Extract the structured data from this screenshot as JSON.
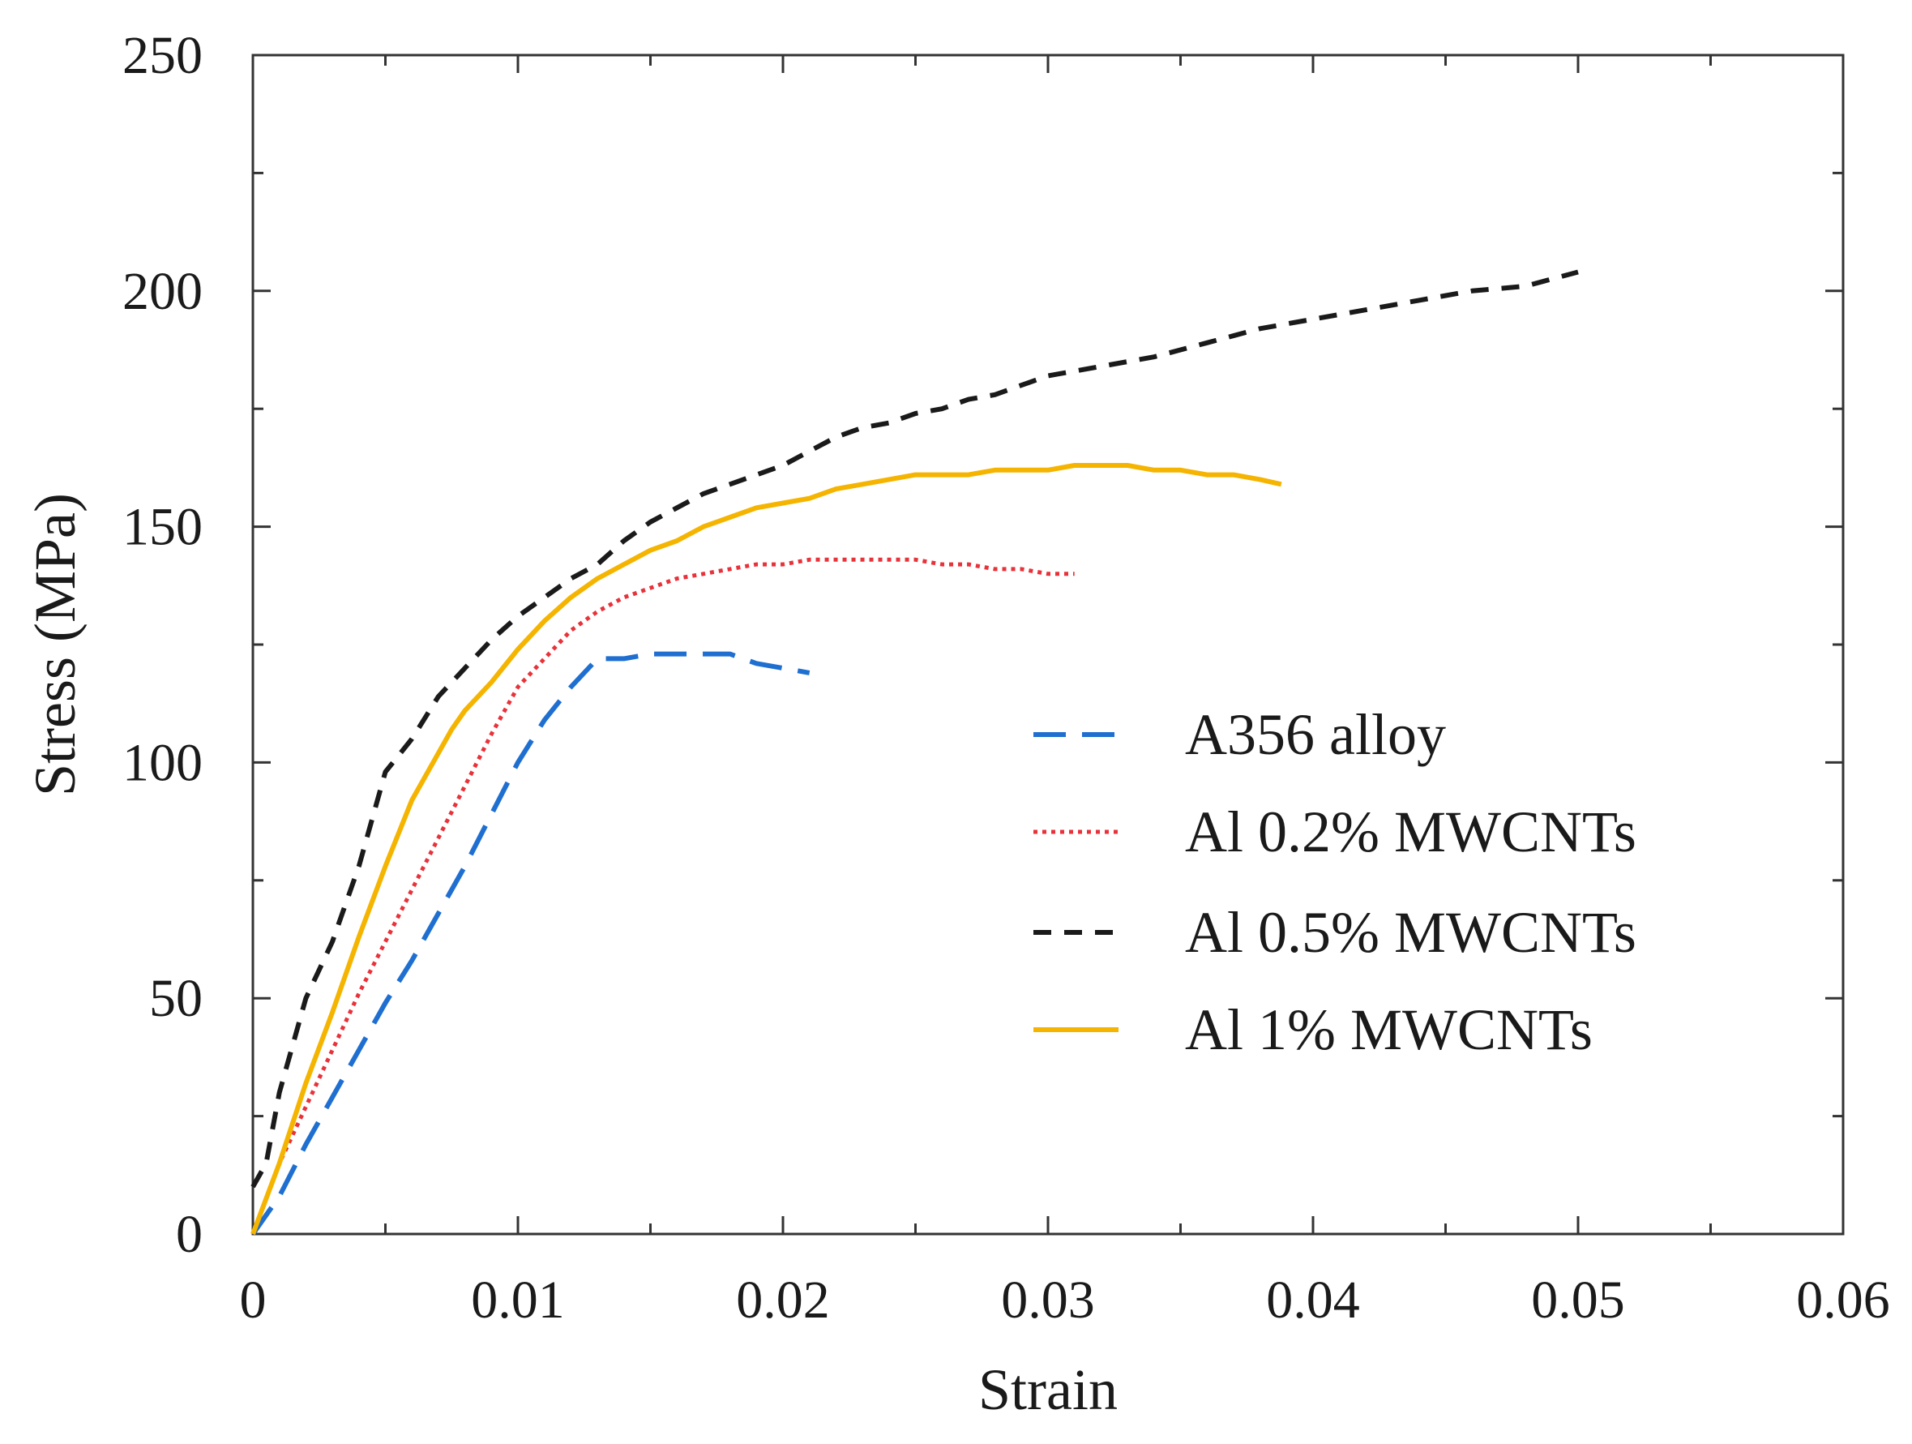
{
  "chart_data": {
    "type": "line",
    "title": "",
    "xlabel": "Strain",
    "ylabel": "Stress (MPa)",
    "xlim": [
      0,
      0.06
    ],
    "ylim": [
      0,
      250
    ],
    "xticks": [
      0,
      0.01,
      0.02,
      0.03,
      0.04,
      0.05,
      0.06
    ],
    "yticks": [
      0,
      50,
      100,
      150,
      200,
      250
    ],
    "xtick_labels": [
      "0",
      "0.01",
      "0.02",
      "0.03",
      "0.04",
      "0.05",
      "0.06"
    ],
    "ytick_labels": [
      "0",
      "50",
      "100",
      "150",
      "200",
      "250"
    ],
    "grid": false,
    "legend_position": "center-right",
    "series": [
      {
        "name": "A356 alloy",
        "color": "#1f6fd1",
        "style": "long-dash",
        "x": [
          0,
          0.001,
          0.002,
          0.003,
          0.004,
          0.005,
          0.006,
          0.007,
          0.008,
          0.009,
          0.01,
          0.011,
          0.012,
          0.013,
          0.014,
          0.015,
          0.016,
          0.017,
          0.018,
          0.019,
          0.02,
          0.021
        ],
        "y": [
          0,
          8,
          19,
          29,
          39,
          49,
          58,
          68,
          78,
          89,
          100,
          109,
          116,
          122,
          122,
          123,
          123,
          123,
          123,
          121,
          120,
          119
        ]
      },
      {
        "name": "Al 0.2% MWCNTs",
        "color": "#e8323a",
        "style": "dotted",
        "x": [
          0,
          0.001,
          0.002,
          0.003,
          0.004,
          0.005,
          0.006,
          0.007,
          0.008,
          0.009,
          0.01,
          0.011,
          0.012,
          0.013,
          0.014,
          0.015,
          0.016,
          0.017,
          0.018,
          0.019,
          0.02,
          0.021,
          0.022,
          0.023,
          0.024,
          0.025,
          0.026,
          0.027,
          0.028,
          0.029,
          0.03,
          0.031
        ],
        "y": [
          0,
          15,
          27,
          39,
          51,
          62,
          73,
          84,
          95,
          106,
          116,
          122,
          128,
          132,
          135,
          137,
          139,
          140,
          141,
          142,
          142,
          143,
          143,
          143,
          143,
          143,
          142,
          142,
          141,
          141,
          140,
          140
        ]
      },
      {
        "name": "Al 0.5% MWCNTs",
        "color": "#1a1a1a",
        "style": "short-dash",
        "x": [
          0,
          0.0005,
          0.001,
          0.002,
          0.003,
          0.004,
          0.005,
          0.006,
          0.007,
          0.008,
          0.009,
          0.01,
          0.011,
          0.012,
          0.013,
          0.014,
          0.015,
          0.016,
          0.017,
          0.018,
          0.019,
          0.02,
          0.021,
          0.022,
          0.023,
          0.024,
          0.025,
          0.026,
          0.027,
          0.028,
          0.029,
          0.03,
          0.032,
          0.034,
          0.036,
          0.038,
          0.04,
          0.042,
          0.044,
          0.046,
          0.048,
          0.05
        ],
        "y": [
          10,
          15,
          30,
          50,
          62,
          78,
          98,
          105,
          114,
          120,
          126,
          131,
          135,
          139,
          142,
          147,
          151,
          154,
          157,
          159,
          161,
          163,
          166,
          169,
          171,
          172,
          174,
          175,
          177,
          178,
          180,
          182,
          184,
          186,
          189,
          192,
          194,
          196,
          198,
          200,
          201,
          204
        ]
      },
      {
        "name": "Al 1% MWCNTs",
        "color": "#f5b400",
        "style": "solid",
        "x": [
          0,
          0.001,
          0.002,
          0.003,
          0.004,
          0.005,
          0.006,
          0.007,
          0.0075,
          0.008,
          0.009,
          0.01,
          0.011,
          0.012,
          0.013,
          0.014,
          0.015,
          0.016,
          0.017,
          0.018,
          0.019,
          0.02,
          0.021,
          0.022,
          0.023,
          0.024,
          0.025,
          0.026,
          0.027,
          0.028,
          0.029,
          0.03,
          0.031,
          0.032,
          0.033,
          0.034,
          0.035,
          0.036,
          0.037,
          0.038,
          0.0388
        ],
        "y": [
          0,
          15,
          32,
          47,
          63,
          78,
          92,
          102,
          107,
          111,
          117,
          124,
          130,
          135,
          139,
          142,
          145,
          147,
          150,
          152,
          154,
          155,
          156,
          158,
          159,
          160,
          161,
          161,
          161,
          162,
          162,
          162,
          163,
          163,
          163,
          162,
          162,
          161,
          161,
          160,
          159
        ]
      }
    ]
  }
}
